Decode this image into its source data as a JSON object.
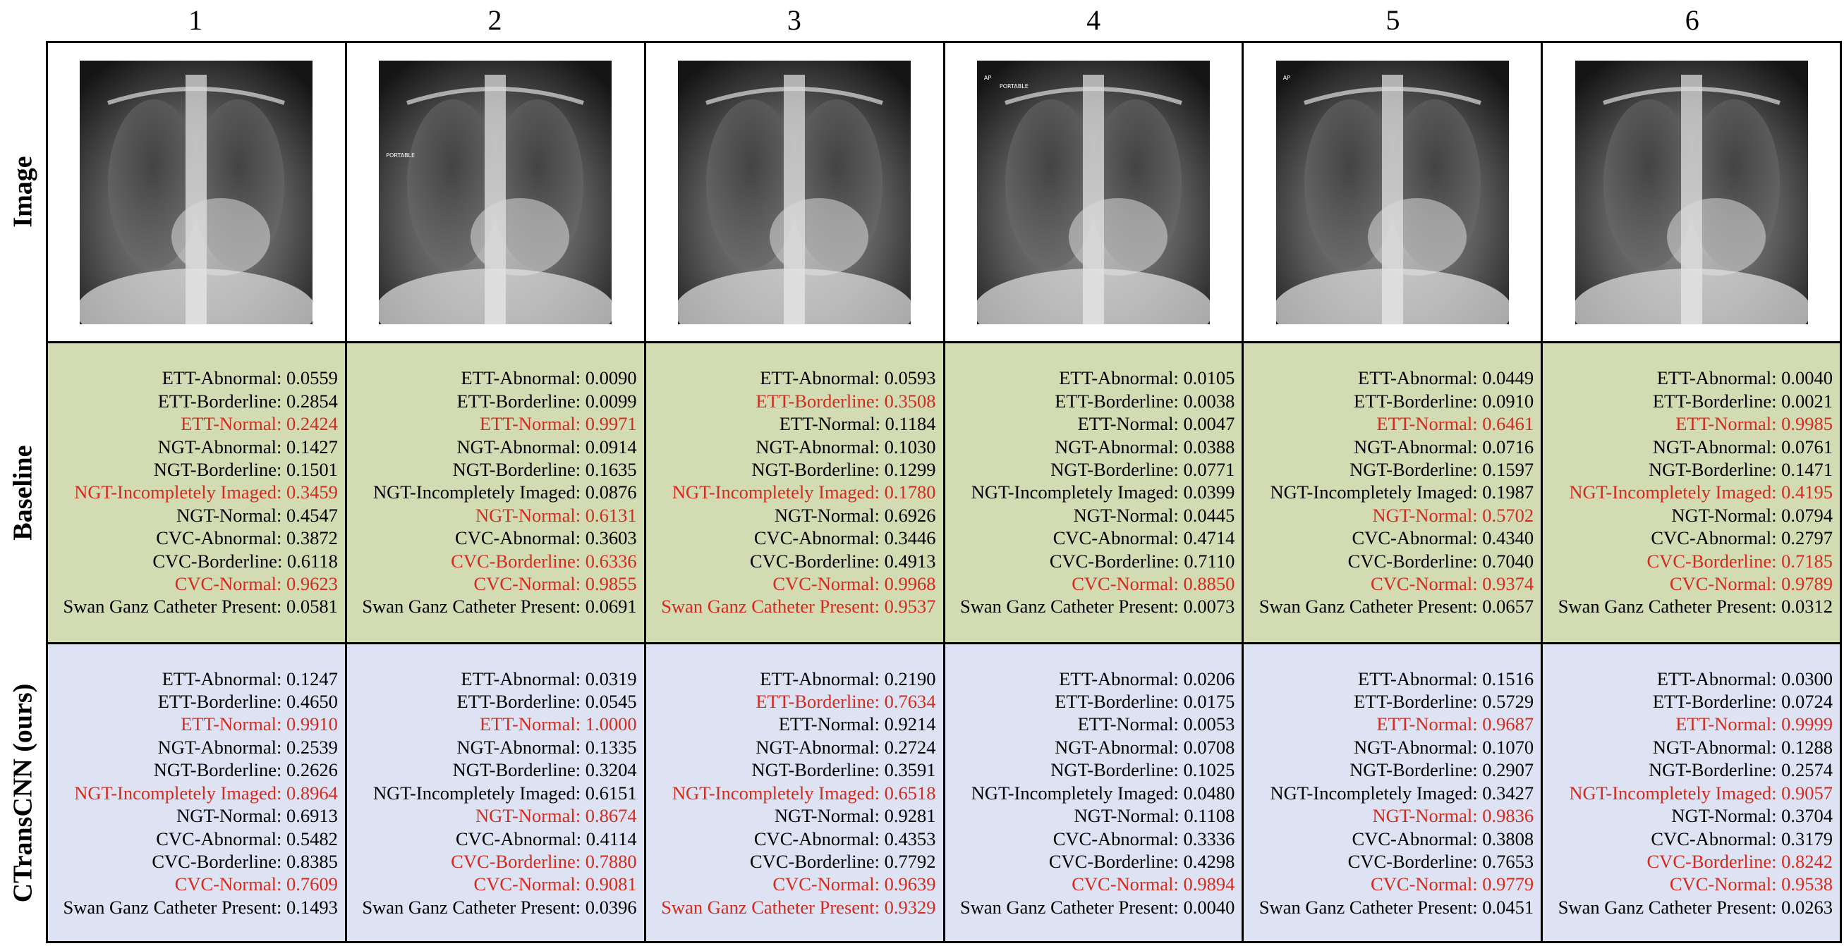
{
  "columns": [
    "1",
    "2",
    "3",
    "4",
    "5",
    "6"
  ],
  "row_labels": {
    "image": "Image",
    "baseline": "Baseline",
    "ours": "CTransCNN (ours)"
  },
  "highlight_color": "#d42a1f",
  "image_icon": "chest-xray-image",
  "image_overlays": [
    [],
    [
      "PORTABLE"
    ],
    [],
    [
      "AP",
      "PORTABLE"
    ],
    [
      "AP"
    ],
    []
  ],
  "baseline": [
    [
      {
        "text": "ETT-Abnormal: 0.0559",
        "hl": false
      },
      {
        "text": "ETT-Borderline: 0.2854",
        "hl": false
      },
      {
        "text": "ETT-Normal: 0.2424",
        "hl": true
      },
      {
        "text": "NGT-Abnormal: 0.1427",
        "hl": false
      },
      {
        "text": "NGT-Borderline: 0.1501",
        "hl": false
      },
      {
        "text": "NGT-Incompletely Imaged: 0.3459",
        "hl": true
      },
      {
        "text": "NGT-Normal: 0.4547",
        "hl": false
      },
      {
        "text": "CVC-Abnormal: 0.3872",
        "hl": false
      },
      {
        "text": "CVC-Borderline: 0.6118",
        "hl": false
      },
      {
        "text": "CVC-Normal: 0.9623",
        "hl": true
      },
      {
        "text": "Swan Ganz Catheter Present: 0.0581",
        "hl": false
      }
    ],
    [
      {
        "text": "ETT-Abnormal: 0.0090",
        "hl": false
      },
      {
        "text": "ETT-Borderline: 0.0099",
        "hl": false
      },
      {
        "text": "ETT-Normal: 0.9971",
        "hl": true
      },
      {
        "text": "NGT-Abnormal: 0.0914",
        "hl": false
      },
      {
        "text": "NGT-Borderline: 0.1635",
        "hl": false
      },
      {
        "text": "NGT-Incompletely Imaged: 0.0876",
        "hl": false
      },
      {
        "text": "NGT-Normal: 0.6131",
        "hl": true
      },
      {
        "text": "CVC-Abnormal: 0.3603",
        "hl": false
      },
      {
        "text": "CVC-Borderline: 0.6336",
        "hl": true
      },
      {
        "text": "CVC-Normal: 0.9855",
        "hl": true
      },
      {
        "text": "Swan Ganz Catheter Present: 0.0691",
        "hl": false
      }
    ],
    [
      {
        "text": "ETT-Abnormal: 0.0593",
        "hl": false
      },
      {
        "text": "ETT-Borderline: 0.3508",
        "hl": true
      },
      {
        "text": "ETT-Normal: 0.1184",
        "hl": false
      },
      {
        "text": "NGT-Abnormal: 0.1030",
        "hl": false
      },
      {
        "text": "NGT-Borderline: 0.1299",
        "hl": false
      },
      {
        "text": "NGT-Incompletely Imaged: 0.1780",
        "hl": true
      },
      {
        "text": "NGT-Normal: 0.6926",
        "hl": false
      },
      {
        "text": "CVC-Abnormal: 0.3446",
        "hl": false
      },
      {
        "text": "CVC-Borderline: 0.4913",
        "hl": false
      },
      {
        "text": "CVC-Normal: 0.9968",
        "hl": true
      },
      {
        "text": "Swan Ganz Catheter Present: 0.9537",
        "hl": true
      }
    ],
    [
      {
        "text": "ETT-Abnormal: 0.0105",
        "hl": false
      },
      {
        "text": "ETT-Borderline: 0.0038",
        "hl": false
      },
      {
        "text": "ETT-Normal: 0.0047",
        "hl": false
      },
      {
        "text": "NGT-Abnormal: 0.0388",
        "hl": false
      },
      {
        "text": "NGT-Borderline: 0.0771",
        "hl": false
      },
      {
        "text": "NGT-Incompletely Imaged: 0.0399",
        "hl": false
      },
      {
        "text": "NGT-Normal: 0.0445",
        "hl": false
      },
      {
        "text": "CVC-Abnormal: 0.4714",
        "hl": false
      },
      {
        "text": "CVC-Borderline: 0.7110",
        "hl": false
      },
      {
        "text": "CVC-Normal: 0.8850",
        "hl": true
      },
      {
        "text": "Swan Ganz Catheter Present: 0.0073",
        "hl": false
      }
    ],
    [
      {
        "text": "ETT-Abnormal: 0.0449",
        "hl": false
      },
      {
        "text": "ETT-Borderline: 0.0910",
        "hl": false
      },
      {
        "text": "ETT-Normal: 0.6461",
        "hl": true
      },
      {
        "text": "NGT-Abnormal: 0.0716",
        "hl": false
      },
      {
        "text": "NGT-Borderline: 0.1597",
        "hl": false
      },
      {
        "text": "NGT-Incompletely Imaged: 0.1987",
        "hl": false
      },
      {
        "text": "NGT-Normal: 0.5702",
        "hl": true
      },
      {
        "text": "CVC-Abnormal: 0.4340",
        "hl": false
      },
      {
        "text": "CVC-Borderline: 0.7040",
        "hl": false
      },
      {
        "text": "CVC-Normal: 0.9374",
        "hl": true
      },
      {
        "text": "Swan Ganz Catheter Present: 0.0657",
        "hl": false
      }
    ],
    [
      {
        "text": "ETT-Abnormal: 0.0040",
        "hl": false
      },
      {
        "text": "ETT-Borderline: 0.0021",
        "hl": false
      },
      {
        "text": "ETT-Normal: 0.9985",
        "hl": true
      },
      {
        "text": "NGT-Abnormal: 0.0761",
        "hl": false
      },
      {
        "text": "NGT-Borderline: 0.1471",
        "hl": false
      },
      {
        "text": "NGT-Incompletely Imaged: 0.4195",
        "hl": true
      },
      {
        "text": "NGT-Normal: 0.0794",
        "hl": false
      },
      {
        "text": "CVC-Abnormal: 0.2797",
        "hl": false
      },
      {
        "text": "CVC-Borderline: 0.7185",
        "hl": true
      },
      {
        "text": "CVC-Normal: 0.9789",
        "hl": true
      },
      {
        "text": "Swan Ganz Catheter Present: 0.0312",
        "hl": false
      }
    ]
  ],
  "ours": [
    [
      {
        "text": "ETT-Abnormal: 0.1247",
        "hl": false
      },
      {
        "text": "ETT-Borderline: 0.4650",
        "hl": false
      },
      {
        "text": "ETT-Normal: 0.9910",
        "hl": true
      },
      {
        "text": "NGT-Abnormal: 0.2539",
        "hl": false
      },
      {
        "text": "NGT-Borderline: 0.2626",
        "hl": false
      },
      {
        "text": "NGT-Incompletely Imaged: 0.8964",
        "hl": true
      },
      {
        "text": "NGT-Normal: 0.6913",
        "hl": false
      },
      {
        "text": "CVC-Abnormal: 0.5482",
        "hl": false
      },
      {
        "text": "CVC-Borderline: 0.8385",
        "hl": false
      },
      {
        "text": "CVC-Normal: 0.7609",
        "hl": true
      },
      {
        "text": "Swan Ganz Catheter Present: 0.1493",
        "hl": false
      }
    ],
    [
      {
        "text": "ETT-Abnormal: 0.0319",
        "hl": false
      },
      {
        "text": "ETT-Borderline: 0.0545",
        "hl": false
      },
      {
        "text": "ETT-Normal: 1.0000",
        "hl": true
      },
      {
        "text": "NGT-Abnormal: 0.1335",
        "hl": false
      },
      {
        "text": "NGT-Borderline: 0.3204",
        "hl": false
      },
      {
        "text": "NGT-Incompletely Imaged: 0.6151",
        "hl": false
      },
      {
        "text": "NGT-Normal: 0.8674",
        "hl": true
      },
      {
        "text": "CVC-Abnormal: 0.4114",
        "hl": false
      },
      {
        "text": "CVC-Borderline: 0.7880",
        "hl": true
      },
      {
        "text": "CVC-Normal: 0.9081",
        "hl": true
      },
      {
        "text": "Swan Ganz Catheter Present: 0.0396",
        "hl": false
      }
    ],
    [
      {
        "text": "ETT-Abnormal: 0.2190",
        "hl": false
      },
      {
        "text": "ETT-Borderline: 0.7634",
        "hl": true
      },
      {
        "text": "ETT-Normal: 0.9214",
        "hl": false
      },
      {
        "text": "NGT-Abnormal: 0.2724",
        "hl": false
      },
      {
        "text": "NGT-Borderline: 0.3591",
        "hl": false
      },
      {
        "text": "NGT-Incompletely Imaged: 0.6518",
        "hl": true
      },
      {
        "text": "NGT-Normal: 0.9281",
        "hl": false
      },
      {
        "text": "CVC-Abnormal: 0.4353",
        "hl": false
      },
      {
        "text": "CVC-Borderline: 0.7792",
        "hl": false
      },
      {
        "text": "CVC-Normal: 0.9639",
        "hl": true
      },
      {
        "text": "Swan Ganz Catheter Present: 0.9329",
        "hl": true
      }
    ],
    [
      {
        "text": "ETT-Abnormal: 0.0206",
        "hl": false
      },
      {
        "text": "ETT-Borderline: 0.0175",
        "hl": false
      },
      {
        "text": "ETT-Normal: 0.0053",
        "hl": false
      },
      {
        "text": "NGT-Abnormal: 0.0708",
        "hl": false
      },
      {
        "text": "NGT-Borderline: 0.1025",
        "hl": false
      },
      {
        "text": "NGT-Incompletely Imaged: 0.0480",
        "hl": false
      },
      {
        "text": "NGT-Normal: 0.1108",
        "hl": false
      },
      {
        "text": "CVC-Abnormal: 0.3336",
        "hl": false
      },
      {
        "text": "CVC-Borderline: 0.4298",
        "hl": false
      },
      {
        "text": "CVC-Normal: 0.9894",
        "hl": true
      },
      {
        "text": "Swan Ganz Catheter Present: 0.0040",
        "hl": false
      }
    ],
    [
      {
        "text": "ETT-Abnormal: 0.1516",
        "hl": false
      },
      {
        "text": "ETT-Borderline: 0.5729",
        "hl": false
      },
      {
        "text": "ETT-Normal: 0.9687",
        "hl": true
      },
      {
        "text": "NGT-Abnormal: 0.1070",
        "hl": false
      },
      {
        "text": "NGT-Borderline: 0.2907",
        "hl": false
      },
      {
        "text": "NGT-Incompletely Imaged: 0.3427",
        "hl": false
      },
      {
        "text": "NGT-Normal: 0.9836",
        "hl": true
      },
      {
        "text": "CVC-Abnormal: 0.3808",
        "hl": false
      },
      {
        "text": "CVC-Borderline: 0.7653",
        "hl": false
      },
      {
        "text": "CVC-Normal: 0.9779",
        "hl": true
      },
      {
        "text": "Swan Ganz Catheter Present: 0.0451",
        "hl": false
      }
    ],
    [
      {
        "text": "ETT-Abnormal: 0.0300",
        "hl": false
      },
      {
        "text": "ETT-Borderline: 0.0724",
        "hl": false
      },
      {
        "text": "ETT-Normal: 0.9999",
        "hl": true
      },
      {
        "text": "NGT-Abnormal: 0.1288",
        "hl": false
      },
      {
        "text": "NGT-Borderline: 0.2574",
        "hl": false
      },
      {
        "text": "NGT-Incompletely Imaged: 0.9057",
        "hl": true
      },
      {
        "text": "NGT-Normal: 0.3704",
        "hl": false
      },
      {
        "text": "CVC-Abnormal: 0.3179",
        "hl": false
      },
      {
        "text": "CVC-Borderline: 0.8242",
        "hl": true
      },
      {
        "text": "CVC-Normal: 0.9538",
        "hl": true
      },
      {
        "text": "Swan Ganz Catheter Present: 0.0263",
        "hl": false
      }
    ]
  ]
}
